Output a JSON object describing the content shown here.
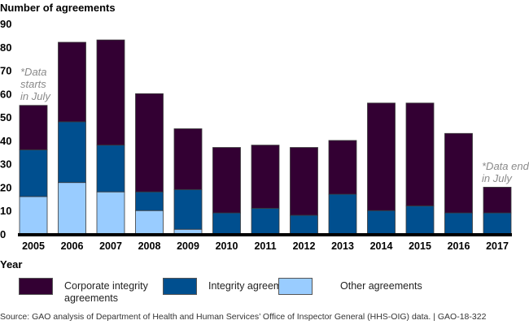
{
  "chart_data": {
    "type": "bar",
    "stacked": true,
    "title": "Number of agreements",
    "xlabel": "Year",
    "ylabel": "Number of agreements",
    "ylim": [
      0,
      90
    ],
    "yticks": [
      0,
      10,
      20,
      30,
      40,
      50,
      60,
      70,
      80,
      90
    ],
    "ytick_labels": [
      "0",
      "10",
      "20",
      "30",
      "40",
      "50",
      "60",
      "70",
      "80",
      "90"
    ],
    "grid": false,
    "categories": [
      "2005",
      "2006",
      "2007",
      "2008",
      "2009",
      "2010",
      "2011",
      "2012",
      "2013",
      "2014",
      "2015",
      "2016",
      "2017"
    ],
    "series": [
      {
        "name": "Other agreements",
        "color": "#99ccff",
        "values": [
          16,
          22,
          18,
          10,
          2,
          0,
          0,
          0,
          0,
          0,
          0,
          0,
          0
        ]
      },
      {
        "name": "Integrity agreements",
        "color": "#004f8f",
        "values": [
          20,
          26,
          20,
          8,
          17,
          9,
          11,
          8,
          17,
          10,
          12,
          9,
          9
        ]
      },
      {
        "name": "Corporate integrity agreements",
        "color": "#330033",
        "values": [
          19,
          34,
          45,
          42,
          26,
          28,
          27,
          29,
          23,
          46,
          44,
          34,
          11
        ]
      }
    ],
    "totals": [
      55,
      82,
      83,
      60,
      45,
      37,
      38,
      37,
      40,
      56,
      56,
      43,
      20
    ],
    "annotations": [
      {
        "category": "2005",
        "lines": [
          "*Data",
          "starts",
          "in July"
        ]
      },
      {
        "category": "2017",
        "lines": [
          "*Data ends",
          "in July"
        ]
      }
    ],
    "legend_position": "bottom"
  },
  "legend": {
    "items": [
      {
        "label": "Corporate integrity agreements",
        "color": "#330033"
      },
      {
        "label": "Integrity agreements",
        "color": "#004f8f"
      },
      {
        "label": "Other agreements",
        "color": "#99ccff"
      }
    ]
  },
  "source": "Source: GAO analysis of Department of Health and Human Services’ Office of Inspector General (HHS-OIG) data.  |  GAO-18-322"
}
